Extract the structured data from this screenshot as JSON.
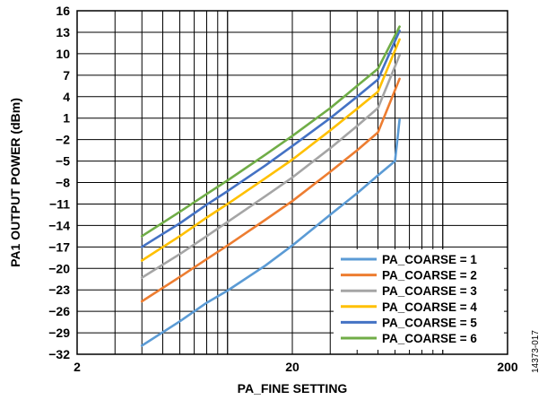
{
  "chart_data": {
    "type": "line",
    "title": "",
    "xlabel": "PA_FINE SETTING",
    "ylabel": "PA1 OUTPUT POWER (dBm)",
    "xscale": "log",
    "xlim": [
      2,
      200
    ],
    "ylim": [
      -32,
      16
    ],
    "x_ticks": [
      2,
      20,
      200
    ],
    "y_ticks": [
      -32,
      -29,
      -26,
      -23,
      -20,
      -17,
      -14,
      -11,
      -8,
      -5,
      -2,
      1,
      4,
      7,
      10,
      13,
      16
    ],
    "x_tick_labels": [
      "2",
      "20",
      "200"
    ],
    "y_tick_labels": [
      "−32",
      "−29",
      "−26",
      "−23",
      "−20",
      "−17",
      "−14",
      "−11",
      "−8",
      "−5",
      "−2",
      "1",
      "4",
      "7",
      "10",
      "13",
      "16"
    ],
    "grid": true,
    "legend_position": "bottom-right",
    "series": [
      {
        "name": "PA_COARSE = 1",
        "color": "#5B9BD5",
        "x": [
          4,
          6,
          8,
          10,
          15,
          20,
          30,
          40,
          50,
          60,
          63
        ],
        "y": [
          -30.8,
          -27.4,
          -24.8,
          -23.1,
          -19.6,
          -16.8,
          -12.5,
          -9.5,
          -7.0,
          -5.0,
          0.8
        ]
      },
      {
        "name": "PA_COARSE = 2",
        "color": "#ED7D31",
        "x": [
          4,
          6,
          8,
          10,
          15,
          20,
          30,
          40,
          50,
          63
        ],
        "y": [
          -24.6,
          -21.2,
          -18.7,
          -16.8,
          -13.2,
          -10.6,
          -6.5,
          -3.5,
          -1.0,
          6.5
        ]
      },
      {
        "name": "PA_COARSE = 3",
        "color": "#A5A5A5",
        "x": [
          4,
          6,
          8,
          10,
          15,
          20,
          30,
          40,
          50,
          63
        ],
        "y": [
          -21.3,
          -18.0,
          -15.5,
          -13.5,
          -9.9,
          -7.3,
          -3.2,
          -0.1,
          2.4,
          9.8
        ]
      },
      {
        "name": "PA_COARSE = 4",
        "color": "#FFC000",
        "x": [
          4,
          6,
          8,
          10,
          15,
          20,
          30,
          40,
          50,
          63
        ],
        "y": [
          -18.9,
          -15.5,
          -12.9,
          -11.0,
          -7.4,
          -4.8,
          -0.7,
          2.3,
          4.7,
          12.0
        ]
      },
      {
        "name": "PA_COARSE = 5",
        "color": "#4472C4",
        "x": [
          4,
          6,
          8,
          10,
          15,
          20,
          30,
          40,
          50,
          63
        ],
        "y": [
          -17.0,
          -13.7,
          -11.1,
          -9.2,
          -5.6,
          -2.9,
          1.0,
          4.0,
          6.4,
          13.2
        ]
      },
      {
        "name": "PA_COARSE = 6",
        "color": "#70AD47",
        "x": [
          4,
          6,
          8,
          10,
          15,
          20,
          30,
          40,
          50,
          63
        ],
        "y": [
          -15.5,
          -12.1,
          -9.6,
          -7.7,
          -4.1,
          -1.5,
          2.4,
          5.5,
          7.9,
          13.8
        ]
      }
    ],
    "figure_id": "14373-017"
  }
}
